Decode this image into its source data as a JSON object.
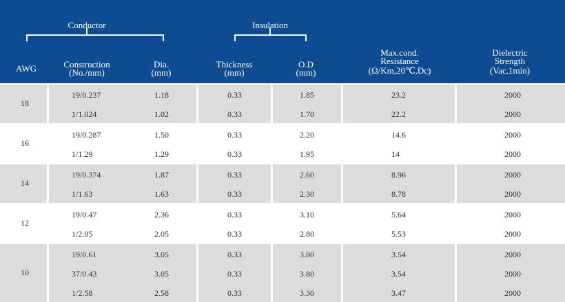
{
  "header": {
    "conductor": "Conductor",
    "insulation": "Insulation",
    "awg": "AWG",
    "construction": [
      "Construction",
      "(No./mm)"
    ],
    "dia": [
      "Dia.",
      "(mm)"
    ],
    "thickness": [
      "Thickness",
      "(mm)"
    ],
    "od": [
      "O.D",
      "(mm)"
    ],
    "resistance": [
      "Max.cond.",
      "Resistance",
      "(Ω/Km,20℃,Dc)"
    ],
    "dielectric": [
      "Dielectric",
      "Strength",
      "(Vac,1min)"
    ]
  },
  "colors": {
    "header_bg": "#0d4c92",
    "shaded_row": "#dcdcdc",
    "text": "#333333"
  },
  "groups": [
    {
      "awg": "18",
      "rows": [
        {
          "construction": "19/0.237",
          "dia": "1.18",
          "thickness": "0.33",
          "od": "1.85",
          "resistance": "23.2",
          "dielectric": "2000"
        },
        {
          "construction": "1/1.024",
          "dia": "1.02",
          "thickness": "0.33",
          "od": "1.70",
          "resistance": "22.2",
          "dielectric": "2000"
        }
      ]
    },
    {
      "awg": "16",
      "rows": [
        {
          "construction": "19/0.287",
          "dia": "1.50",
          "thickness": "0.33",
          "od": "2.20",
          "resistance": "14.6",
          "dielectric": "2000"
        },
        {
          "construction": "1/1.29",
          "dia": "1.29",
          "thickness": "0.33",
          "od": "1.95",
          "resistance": "14",
          "dielectric": "2000"
        }
      ]
    },
    {
      "awg": "14",
      "rows": [
        {
          "construction": "19/0.374",
          "dia": "1.87",
          "thickness": "0.33",
          "od": "2.60",
          "resistance": "8.96",
          "dielectric": "2000"
        },
        {
          "construction": "1/1.63",
          "dia": "1.63",
          "thickness": "0.33",
          "od": "2.30",
          "resistance": "8.78",
          "dielectric": "2000"
        }
      ]
    },
    {
      "awg": "12",
      "rows": [
        {
          "construction": "19/0.47",
          "dia": "2.36",
          "thickness": "0.33",
          "od": "3.10",
          "resistance": "5.64",
          "dielectric": "2000"
        },
        {
          "construction": "1/2.05",
          "dia": "2.05",
          "thickness": "0.33",
          "od": "2.80",
          "resistance": "5.53",
          "dielectric": "2000"
        }
      ]
    },
    {
      "awg": "10",
      "rows": [
        {
          "construction": "19/0.61",
          "dia": "3.05",
          "thickness": "0.33",
          "od": "3.80",
          "resistance": "3.54",
          "dielectric": "2000"
        },
        {
          "construction": "37/0.43",
          "dia": "3.05",
          "thickness": "0.33",
          "od": "3.80",
          "resistance": "3.54",
          "dielectric": "2000"
        },
        {
          "construction": "1/2.58",
          "dia": "2.58",
          "thickness": "0.33",
          "od": "3.30",
          "resistance": "3.47",
          "dielectric": "2000"
        }
      ]
    }
  ]
}
